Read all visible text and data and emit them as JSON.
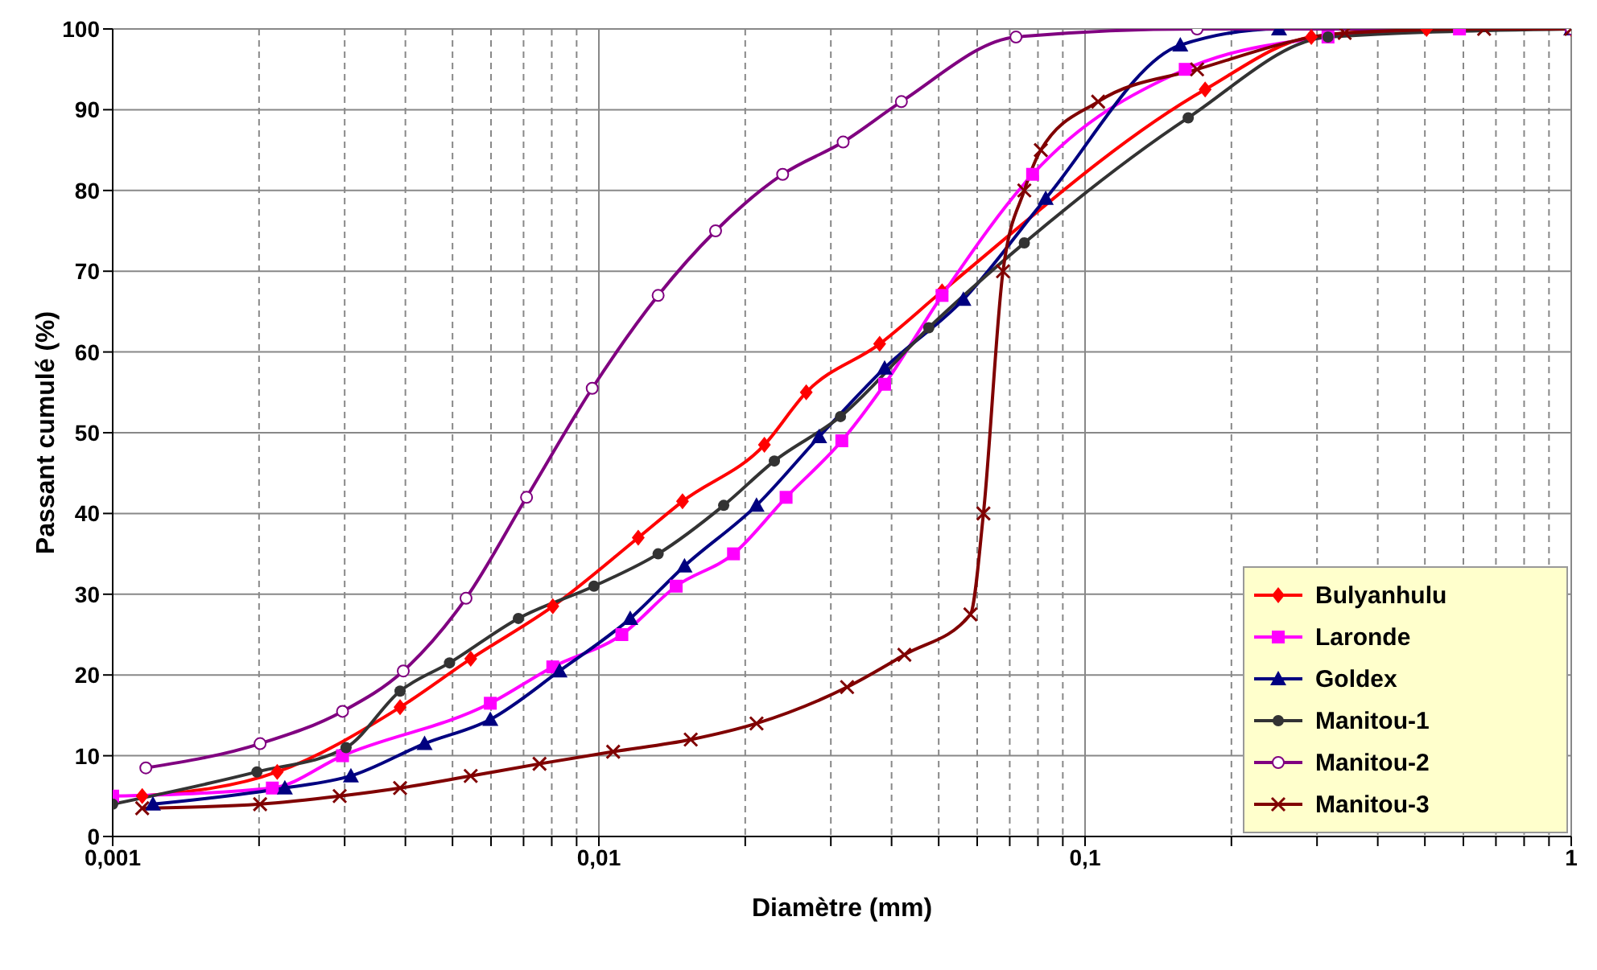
{
  "chart_data": {
    "type": "line",
    "xlabel": "Diamètre (mm)",
    "ylabel": "Passant cumulé (%)",
    "log": "x",
    "xlim": [
      0.001,
      1
    ],
    "xticks": [
      {
        "value": 0.001,
        "label": "0,001"
      },
      {
        "value": 0.002,
        "label": null
      },
      {
        "value": 0.003,
        "label": null
      },
      {
        "value": 0.004,
        "label": null
      },
      {
        "value": 0.005,
        "label": null
      },
      {
        "value": 0.006,
        "label": null
      },
      {
        "value": 0.007,
        "label": null
      },
      {
        "value": 0.008,
        "label": null
      },
      {
        "value": 0.009,
        "label": null
      },
      {
        "value": 0.01,
        "label": "0,01"
      },
      {
        "value": 0.02,
        "label": null
      },
      {
        "value": 0.03,
        "label": null
      },
      {
        "value": 0.04,
        "label": null
      },
      {
        "value": 0.05,
        "label": null
      },
      {
        "value": 0.06,
        "label": null
      },
      {
        "value": 0.07,
        "label": null
      },
      {
        "value": 0.08,
        "label": null
      },
      {
        "value": 0.09,
        "label": null
      },
      {
        "value": 0.1,
        "label": "0,1"
      },
      {
        "value": 0.2,
        "label": null
      },
      {
        "value": 0.3,
        "label": null
      },
      {
        "value": 0.4,
        "label": null
      },
      {
        "value": 0.5,
        "label": null
      },
      {
        "value": 0.6,
        "label": null
      },
      {
        "value": 0.7,
        "label": null
      },
      {
        "value": 0.8,
        "label": null
      },
      {
        "value": 0.9,
        "label": null
      },
      {
        "value": 1,
        "label": "1"
      }
    ],
    "ylim": [
      0,
      100
    ],
    "yticks": [
      0,
      10,
      20,
      30,
      40,
      50,
      60,
      70,
      80,
      90,
      100
    ],
    "grid": true,
    "legend": "bottom right",
    "line_style": "solid",
    "series": [
      {
        "name": "Bulyanhulu",
        "color": "#ff0000",
        "marker": "diamond",
        "x": [
          0.00115,
          0.00218,
          0.0039,
          0.00545,
          0.00804,
          0.01205,
          0.01486,
          0.0219,
          0.0267,
          0.0378,
          0.0508,
          0.1766,
          0.292,
          0.504,
          1
        ],
        "values": [
          5,
          8,
          16,
          22,
          28.5,
          37,
          41.5,
          48.5,
          55,
          61,
          67.5,
          92.5,
          99,
          100,
          100
        ]
      },
      {
        "name": "Laronde",
        "color": "#ff00ff",
        "marker": "square",
        "x": [
          0.001,
          0.00213,
          0.00297,
          0.00598,
          0.00804,
          0.01115,
          0.01442,
          0.01892,
          0.02427,
          0.0316,
          0.0387,
          0.0508,
          0.078,
          0.1607,
          0.316,
          0.589,
          1
        ],
        "values": [
          5,
          6,
          10,
          16.5,
          21,
          25,
          31,
          35,
          42,
          49,
          56,
          67,
          82,
          95,
          99,
          100,
          100
        ]
      },
      {
        "name": "Goldex",
        "color": "#000080",
        "marker": "triangle",
        "x": [
          0.00121,
          0.00226,
          0.00309,
          0.00438,
          0.00598,
          0.0083,
          0.0116,
          0.015,
          0.0211,
          0.02838,
          0.0387,
          0.0562,
          0.083,
          0.157,
          0.2506,
          1
        ],
        "values": [
          4,
          6,
          7.5,
          11.5,
          14.5,
          20.5,
          27,
          33.5,
          41,
          49.5,
          58,
          66.5,
          79,
          98,
          100,
          100
        ]
      },
      {
        "name": "Manitou-1",
        "color": "#333333",
        "marker": "circle",
        "x": [
          0.001,
          0.00198,
          0.00302,
          0.0039,
          0.00493,
          0.00683,
          0.00977,
          0.01324,
          0.01806,
          0.02296,
          0.0314,
          0.0477,
          0.075,
          0.163,
          0.316,
          1
        ],
        "values": [
          4,
          8,
          11,
          18,
          21.5,
          27,
          31,
          35,
          41,
          46.5,
          52,
          63,
          73.5,
          89,
          99,
          100
        ]
      },
      {
        "name": "Manitou-2",
        "color": "#800080",
        "marker": "circle-open",
        "x": [
          0.00117,
          0.00201,
          0.00297,
          0.00396,
          0.00533,
          0.0071,
          0.00969,
          0.01324,
          0.01738,
          0.02388,
          0.0318,
          0.0419,
          0.0721,
          0.17,
          1
        ],
        "values": [
          8.5,
          11.5,
          15.5,
          20.5,
          29.5,
          42,
          55.5,
          67,
          75,
          82,
          86,
          91,
          99,
          100,
          100
        ]
      },
      {
        "name": "Manitou-3",
        "color": "#800000",
        "marker": "cross",
        "x": [
          0.00115,
          0.00201,
          0.00293,
          0.0039,
          0.00545,
          0.00755,
          0.0107,
          0.01545,
          0.0211,
          0.0324,
          0.0425,
          0.0581,
          0.0618,
          0.0678,
          0.075,
          0.0811,
          0.1064,
          0.17,
          0.342,
          0.662,
          1
        ],
        "values": [
          3.5,
          4,
          5,
          6,
          7.5,
          9,
          10.5,
          12,
          14,
          18.5,
          22.5,
          27.5,
          40,
          70,
          80,
          85,
          91,
          95,
          99.5,
          100,
          100
        ]
      }
    ]
  }
}
